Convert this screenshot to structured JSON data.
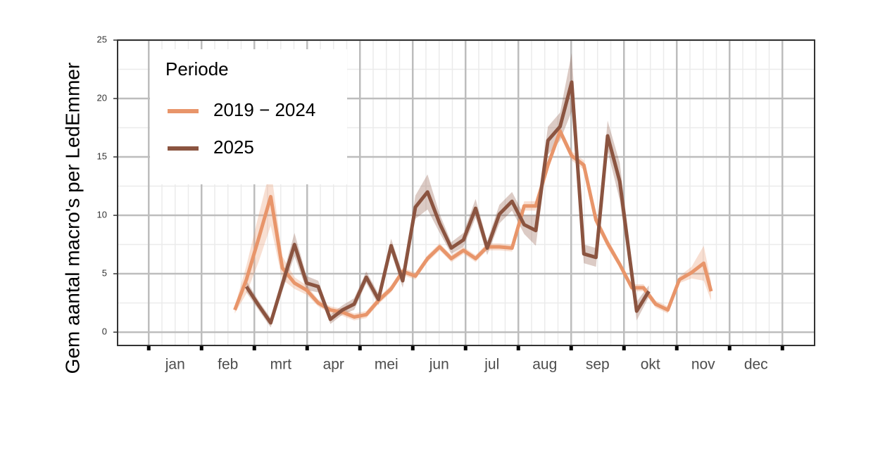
{
  "chart_data": {
    "type": "line",
    "ylabel": "Gem aantal macro's per LedEmmer",
    "categories": [
      "jan",
      "feb",
      "mrt",
      "apr",
      "mei",
      "jun",
      "jul",
      "aug",
      "sep",
      "okt",
      "nov",
      "dec"
    ],
    "xlim": [
      -0.59,
      12.61
    ],
    "xticks": [
      0,
      1,
      2,
      3,
      4,
      5,
      6,
      7,
      8,
      9,
      10,
      11,
      12
    ],
    "ylim": [
      -1.14,
      25
    ],
    "yticks": [
      0,
      5,
      10,
      15,
      20,
      25
    ],
    "grid": true,
    "legend": {
      "title": "Periode",
      "position": "top-left"
    },
    "series": [
      {
        "name": "2019 − 2024",
        "color": "#e8956a",
        "x": [
          1.63,
          1.85,
          2.08,
          2.31,
          2.53,
          2.76,
          2.99,
          3.21,
          3.44,
          3.67,
          3.89,
          4.12,
          4.35,
          4.59,
          4.81,
          5.05,
          5.28,
          5.51,
          5.73,
          5.96,
          6.19,
          6.41,
          6.64,
          6.88,
          7.11,
          7.33,
          7.56,
          7.79,
          8.01,
          8.24,
          8.47,
          8.69,
          8.92,
          9.15,
          9.37,
          9.6,
          9.83,
          10.05,
          10.28,
          10.51,
          10.65
        ],
        "values": [
          1.9,
          4.5,
          8,
          11.6,
          5.5,
          4.2,
          3.6,
          2.5,
          1.9,
          1.7,
          1.3,
          1.5,
          2.7,
          3.7,
          5.2,
          4.8,
          6.3,
          7.3,
          6.3,
          7.0,
          6.3,
          7.3,
          7.3,
          7.2,
          10.8,
          10.8,
          14.3,
          17.2,
          15.1,
          14.3,
          9.6,
          7.6,
          5.8,
          3.8,
          3.8,
          2.4,
          1.9,
          4.5,
          5.1,
          5.9,
          3.5
        ],
        "err": [
          0.3,
          1.2,
          2,
          2.5,
          1,
          0.5,
          0.4,
          0.3,
          0.3,
          0.3,
          0.3,
          0.3,
          0.3,
          0.3,
          0.3,
          0.3,
          0.3,
          0.3,
          0.3,
          0.3,
          0.3,
          0.3,
          0.3,
          0.3,
          0.4,
          0.4,
          0.4,
          0.4,
          0.4,
          0.4,
          0.4,
          0.4,
          0.3,
          0.3,
          0.3,
          0.3,
          0.3,
          0.3,
          0.5,
          1.5,
          0.8
        ]
      },
      {
        "name": "2025",
        "color": "#8b5440",
        "x": [
          1.85,
          2.08,
          2.31,
          2.53,
          2.76,
          2.99,
          3.21,
          3.44,
          3.67,
          3.89,
          4.12,
          4.35,
          4.59,
          4.81,
          5.05,
          5.28,
          5.51,
          5.73,
          5.96,
          6.19,
          6.41,
          6.64,
          6.88,
          7.11,
          7.33,
          7.56,
          7.79,
          8.01,
          8.24,
          8.47,
          8.69,
          8.92,
          9.24,
          9.47
        ],
        "values": [
          3.9,
          2.3,
          0.8,
          4.1,
          7.5,
          4.2,
          3.9,
          1.1,
          1.9,
          2.4,
          4.7,
          2.8,
          7.4,
          4.4,
          10.7,
          12.0,
          9.3,
          7.2,
          7.9,
          10.6,
          7.2,
          10.1,
          11.2,
          9.2,
          8.7,
          16.4,
          17.6,
          21.4,
          6.7,
          6.4,
          16.8,
          12.9,
          1.8,
          3.5
        ],
        "err": [
          0.5,
          0.4,
          0.4,
          0.6,
          1,
          0.6,
          0.5,
          0.4,
          0.4,
          0.5,
          0.5,
          0.5,
          0.6,
          0.6,
          1,
          1.5,
          0.8,
          0.5,
          0.6,
          0.8,
          0.6,
          0.8,
          0.8,
          0.8,
          1.3,
          1.2,
          1.2,
          2.5,
          0.8,
          0.8,
          1.3,
          1.6,
          0.8,
          0.5
        ]
      }
    ]
  }
}
